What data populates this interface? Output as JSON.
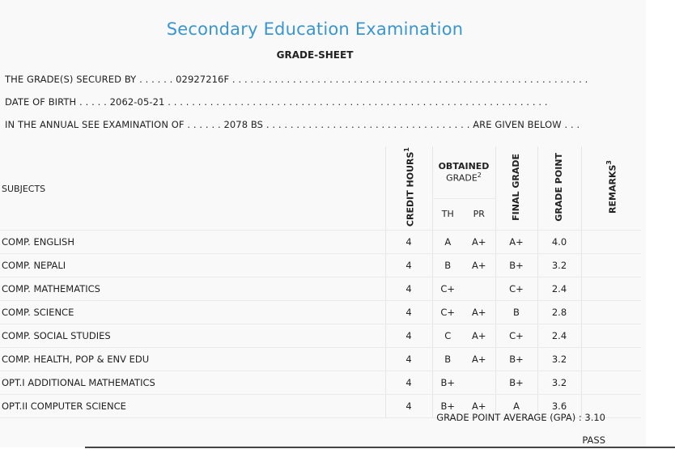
{
  "header": {
    "title": "Secondary Education Examination",
    "subtitle": "GRADE-SHEET"
  },
  "info": {
    "line1": "THE GRADE(S) SECURED BY . . . . . . 02927216F . . . . . . . . . . . . . . . . . . . . . . . . . . . . . . . . . . . . . . . . . . . . . . . . . . . . . . . . . . .",
    "line2": "DATE OF BIRTH . . . . . 2062-05-21 . . . . . . . . . . . . . . . . . . . . . . . . . . . . . . . . . . . . . . . . . . . . . . . . . . . . . . . . . . . . . . .",
    "line3": "IN THE ANNUAL SEE EXAMINATION OF . . . . . . 2078 BS . . . . . . . . . . . . . . . . . . . . . . . . . . . . . . . . . . ARE GIVEN BELOW . . ."
  },
  "table": {
    "headers": {
      "subjects": "SUBJECTS",
      "credit_hours": "CREDIT HOURS",
      "credit_sup": "1",
      "obtained": "OBTAINED",
      "grade": "GRADE",
      "grade_sup": "2",
      "th": "TH",
      "pr": "PR",
      "final_grade": "FINAL GRADE",
      "grade_point": "GRADE POINT",
      "remarks": "REMARKS",
      "remarks_sup": "3"
    },
    "rows": [
      {
        "subject": "COMP. ENGLISH",
        "credit": "4",
        "th": "A",
        "pr": "A+",
        "final": "A+",
        "gp": "4.0",
        "remarks": ""
      },
      {
        "subject": "COMP. NEPALI",
        "credit": "4",
        "th": "B",
        "pr": "A+",
        "final": "B+",
        "gp": "3.2",
        "remarks": ""
      },
      {
        "subject": "COMP. MATHEMATICS",
        "credit": "4",
        "th": "C+",
        "pr": "",
        "final": "C+",
        "gp": "2.4",
        "remarks": ""
      },
      {
        "subject": "COMP. SCIENCE",
        "credit": "4",
        "th": "C+",
        "pr": "A+",
        "final": "B",
        "gp": "2.8",
        "remarks": ""
      },
      {
        "subject": "COMP. SOCIAL STUDIES",
        "credit": "4",
        "th": "C",
        "pr": "A+",
        "final": "C+",
        "gp": "2.4",
        "remarks": ""
      },
      {
        "subject": "COMP. HEALTH, POP & ENV EDU",
        "credit": "4",
        "th": "B",
        "pr": "A+",
        "final": "B+",
        "gp": "3.2",
        "remarks": ""
      },
      {
        "subject": "OPT.I ADDITIONAL MATHEMATICS",
        "credit": "4",
        "th": "B+",
        "pr": "",
        "final": "B+",
        "gp": "3.2",
        "remarks": ""
      },
      {
        "subject": "OPT.II COMPUTER SCIENCE",
        "credit": "4",
        "th": "B+",
        "pr": "A+",
        "final": "A",
        "gp": "3.6",
        "remarks": ""
      }
    ]
  },
  "summary": {
    "gpa": "GRADE POINT AVERAGE (GPA) : 3.10",
    "result": "PASS"
  }
}
